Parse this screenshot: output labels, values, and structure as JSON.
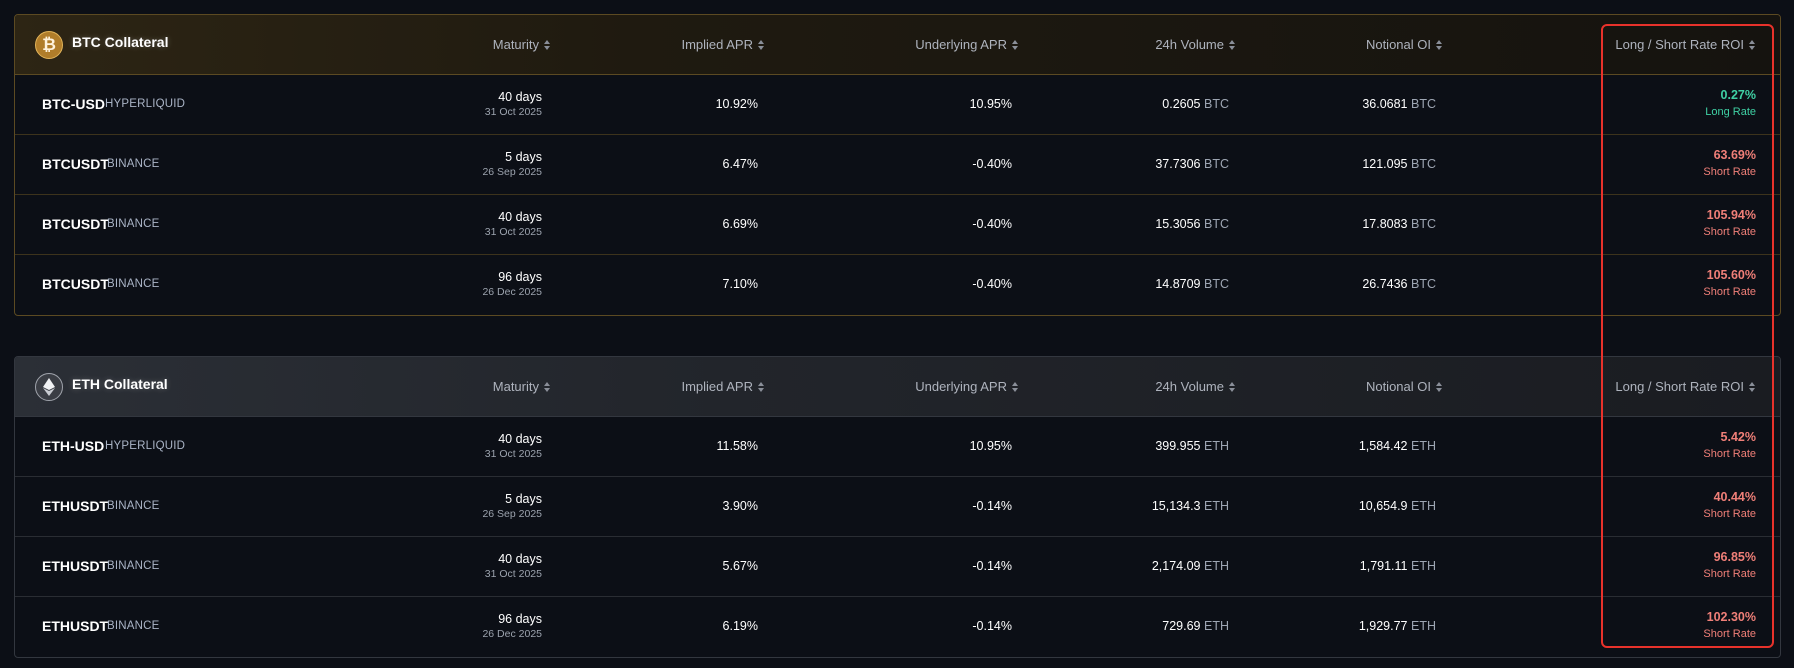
{
  "columns": {
    "maturity": "Maturity",
    "implied_apr": "Implied APR",
    "underlying_apr": "Underlying APR",
    "volume": "24h Volume",
    "notional_oi": "Notional OI",
    "roi": "Long / Short Rate ROI"
  },
  "groups": [
    {
      "title": "BTC Collateral",
      "icon": "bitcoin-icon",
      "accent": "#b07d2a",
      "unit": "BTC",
      "rows": [
        {
          "symbol": "BTC-USD",
          "exchange": "HYPERLIQUID",
          "days": "40 days",
          "date": "31 Oct 2025",
          "implied": "10.92%",
          "underlying": "10.95%",
          "volume": "0.2605",
          "oi": "36.0681",
          "roi": "0.27%",
          "rate": "Long Rate",
          "rate_type": "long"
        },
        {
          "symbol": "BTCUSDT",
          "exchange": "BINANCE",
          "days": "5 days",
          "date": "26 Sep 2025",
          "implied": "6.47%",
          "underlying": "-0.40%",
          "volume": "37.7306",
          "oi": "121.095",
          "roi": "63.69%",
          "rate": "Short Rate",
          "rate_type": "short"
        },
        {
          "symbol": "BTCUSDT",
          "exchange": "BINANCE",
          "days": "40 days",
          "date": "31 Oct 2025",
          "implied": "6.69%",
          "underlying": "-0.40%",
          "volume": "15.3056",
          "oi": "17.8083",
          "roi": "105.94%",
          "rate": "Short Rate",
          "rate_type": "short"
        },
        {
          "symbol": "BTCUSDT",
          "exchange": "BINANCE",
          "days": "96 days",
          "date": "26 Dec 2025",
          "implied": "7.10%",
          "underlying": "-0.40%",
          "volume": "14.8709",
          "oi": "26.7436",
          "roi": "105.60%",
          "rate": "Short Rate",
          "rate_type": "short"
        }
      ]
    },
    {
      "title": "ETH Collateral",
      "icon": "ethereum-icon",
      "accent": "#9fa3ab",
      "unit": "ETH",
      "rows": [
        {
          "symbol": "ETH-USD",
          "exchange": "HYPERLIQUID",
          "days": "40 days",
          "date": "31 Oct 2025",
          "implied": "11.58%",
          "underlying": "10.95%",
          "volume": "399.955",
          "oi": "1,584.42",
          "roi": "5.42%",
          "rate": "Short Rate",
          "rate_type": "short"
        },
        {
          "symbol": "ETHUSDT",
          "exchange": "BINANCE",
          "days": "5 days",
          "date": "26 Sep 2025",
          "implied": "3.90%",
          "underlying": "-0.14%",
          "volume": "15,134.3",
          "oi": "10,654.9",
          "roi": "40.44%",
          "rate": "Short Rate",
          "rate_type": "short"
        },
        {
          "symbol": "ETHUSDT",
          "exchange": "BINANCE",
          "days": "40 days",
          "date": "31 Oct 2025",
          "implied": "5.67%",
          "underlying": "-0.14%",
          "volume": "2,174.09",
          "oi": "1,791.11",
          "roi": "96.85%",
          "rate": "Short Rate",
          "rate_type": "short"
        },
        {
          "symbol": "ETHUSDT",
          "exchange": "BINANCE",
          "days": "96 days",
          "date": "26 Dec 2025",
          "implied": "6.19%",
          "underlying": "-0.14%",
          "volume": "729.69",
          "oi": "1,929.77",
          "roi": "102.30%",
          "rate": "Short Rate",
          "rate_type": "short"
        }
      ]
    }
  ],
  "colors": {
    "long": "#3fd0a4",
    "short": "#f07f78",
    "highlight": "#e8322b"
  }
}
